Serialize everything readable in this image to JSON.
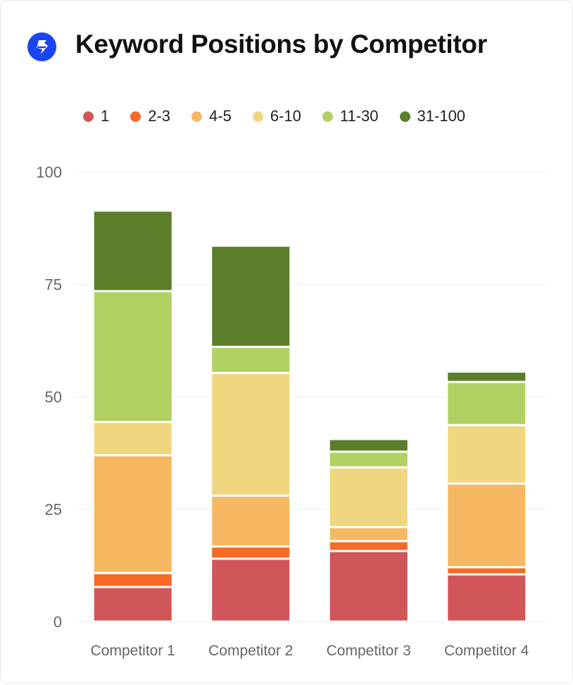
{
  "header": {
    "title": "Keyword Positions by Competitor",
    "icon": "lightning-icon",
    "icon_color": "#1b44f5"
  },
  "chart_data": {
    "type": "bar",
    "stacked": true,
    "title": "Keyword Positions by Competitor",
    "xlabel": "",
    "ylabel": "",
    "ylim": [
      0,
      100
    ],
    "yticks": [
      "0",
      "25",
      "50",
      "75",
      "100"
    ],
    "ytick_values": [
      0,
      25,
      50,
      75,
      100
    ],
    "grid": true,
    "legend_placement": "top-left",
    "categories": [
      "Competitor 1",
      "Competitor 2",
      "Competitor 3",
      "Competitor 4"
    ],
    "series": [
      {
        "name": "1",
        "color": "#d15659",
        "values": [
          7.7,
          14,
          15.7,
          10.5
        ]
      },
      {
        "name": "2-3",
        "color": "#f56a27",
        "values": [
          3.1,
          2.7,
          2.2,
          1.6
        ]
      },
      {
        "name": "4-5",
        "color": "#f6b863",
        "values": [
          26.2,
          11.3,
          3.1,
          18.6
        ]
      },
      {
        "name": "6-10",
        "color": "#f0d67f",
        "values": [
          7.4,
          27.3,
          13.3,
          13
        ]
      },
      {
        "name": "11-30",
        "color": "#b1d163",
        "values": [
          29.1,
          5.8,
          3.5,
          9.6
        ]
      },
      {
        "name": "31-100",
        "color": "#5b7e2b",
        "values": [
          17.9,
          22.5,
          2.8,
          2.3
        ]
      }
    ]
  }
}
